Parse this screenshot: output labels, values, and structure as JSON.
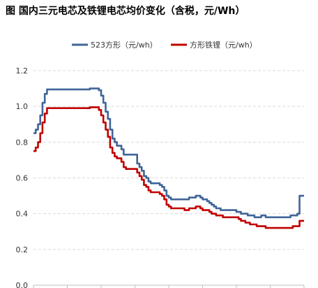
{
  "chart_data": {
    "type": "line",
    "title": "图  国内三元电芯及铁锂电芯均价变化（含税，元/Wh）",
    "xlabel": "",
    "ylabel": "",
    "ylim": [
      0,
      1.2
    ],
    "yticks": [
      "0.0",
      "0.2",
      "0.4",
      "0.6",
      "0.8",
      "1.0",
      "1.2"
    ],
    "grid": true,
    "legend_position": "top-center",
    "x_step_unit": "week",
    "series": [
      {
        "name": "523方形（元/wh）",
        "color": "#3F6498",
        "values": [
          0.85,
          0.87,
          0.9,
          0.95,
          1.02,
          1.07,
          1.095,
          1.095,
          1.095,
          1.095,
          1.095,
          1.095,
          1.095,
          1.095,
          1.095,
          1.095,
          1.095,
          1.095,
          1.095,
          1.095,
          1.095,
          1.095,
          1.095,
          1.095,
          1.095,
          1.1,
          1.1,
          1.1,
          1.1,
          1.09,
          1.06,
          1.02,
          0.97,
          0.93,
          0.87,
          0.82,
          0.8,
          0.78,
          0.78,
          0.76,
          0.73,
          0.73,
          0.73,
          0.73,
          0.73,
          0.73,
          0.68,
          0.66,
          0.64,
          0.61,
          0.6,
          0.58,
          0.57,
          0.57,
          0.57,
          0.57,
          0.56,
          0.55,
          0.53,
          0.5,
          0.49,
          0.48,
          0.48,
          0.48,
          0.48,
          0.48,
          0.48,
          0.48,
          0.48,
          0.49,
          0.49,
          0.49,
          0.5,
          0.5,
          0.49,
          0.48,
          0.48,
          0.47,
          0.46,
          0.45,
          0.44,
          0.43,
          0.43,
          0.42,
          0.42,
          0.42,
          0.42,
          0.42,
          0.42,
          0.42,
          0.41,
          0.41,
          0.4,
          0.4,
          0.4,
          0.39,
          0.39,
          0.39,
          0.38,
          0.38,
          0.38,
          0.39,
          0.39,
          0.38,
          0.38,
          0.38,
          0.38,
          0.38,
          0.38,
          0.38,
          0.38,
          0.38,
          0.38,
          0.38,
          0.39,
          0.39,
          0.39,
          0.4,
          0.5,
          0.5,
          0.5
        ]
      },
      {
        "name": "方形铁锂（元/wh）",
        "color": "#C00000",
        "values": [
          0.75,
          0.77,
          0.8,
          0.85,
          0.91,
          0.96,
          0.99,
          0.99,
          0.99,
          0.99,
          0.99,
          0.99,
          0.99,
          0.99,
          0.99,
          0.99,
          0.99,
          0.99,
          0.99,
          0.99,
          0.99,
          0.99,
          0.99,
          0.99,
          0.99,
          0.995,
          0.995,
          0.995,
          0.995,
          0.98,
          0.95,
          0.91,
          0.87,
          0.83,
          0.77,
          0.74,
          0.72,
          0.71,
          0.71,
          0.69,
          0.66,
          0.65,
          0.65,
          0.65,
          0.65,
          0.65,
          0.63,
          0.61,
          0.59,
          0.56,
          0.55,
          0.53,
          0.52,
          0.52,
          0.52,
          0.52,
          0.51,
          0.5,
          0.48,
          0.45,
          0.44,
          0.43,
          0.43,
          0.43,
          0.43,
          0.43,
          0.43,
          0.42,
          0.42,
          0.43,
          0.43,
          0.43,
          0.44,
          0.44,
          0.43,
          0.42,
          0.42,
          0.42,
          0.41,
          0.4,
          0.4,
          0.39,
          0.39,
          0.39,
          0.38,
          0.38,
          0.38,
          0.38,
          0.38,
          0.38,
          0.38,
          0.37,
          0.36,
          0.36,
          0.35,
          0.35,
          0.34,
          0.34,
          0.34,
          0.33,
          0.33,
          0.33,
          0.33,
          0.32,
          0.32,
          0.32,
          0.32,
          0.32,
          0.32,
          0.32,
          0.32,
          0.32,
          0.32,
          0.32,
          0.32,
          0.33,
          0.33,
          0.33,
          0.36,
          0.36,
          0.36
        ]
      }
    ]
  },
  "colors": {
    "grid": "#D9D9D9",
    "axis": "#BFBFBF",
    "text": "#333333",
    "title": "#000000"
  }
}
